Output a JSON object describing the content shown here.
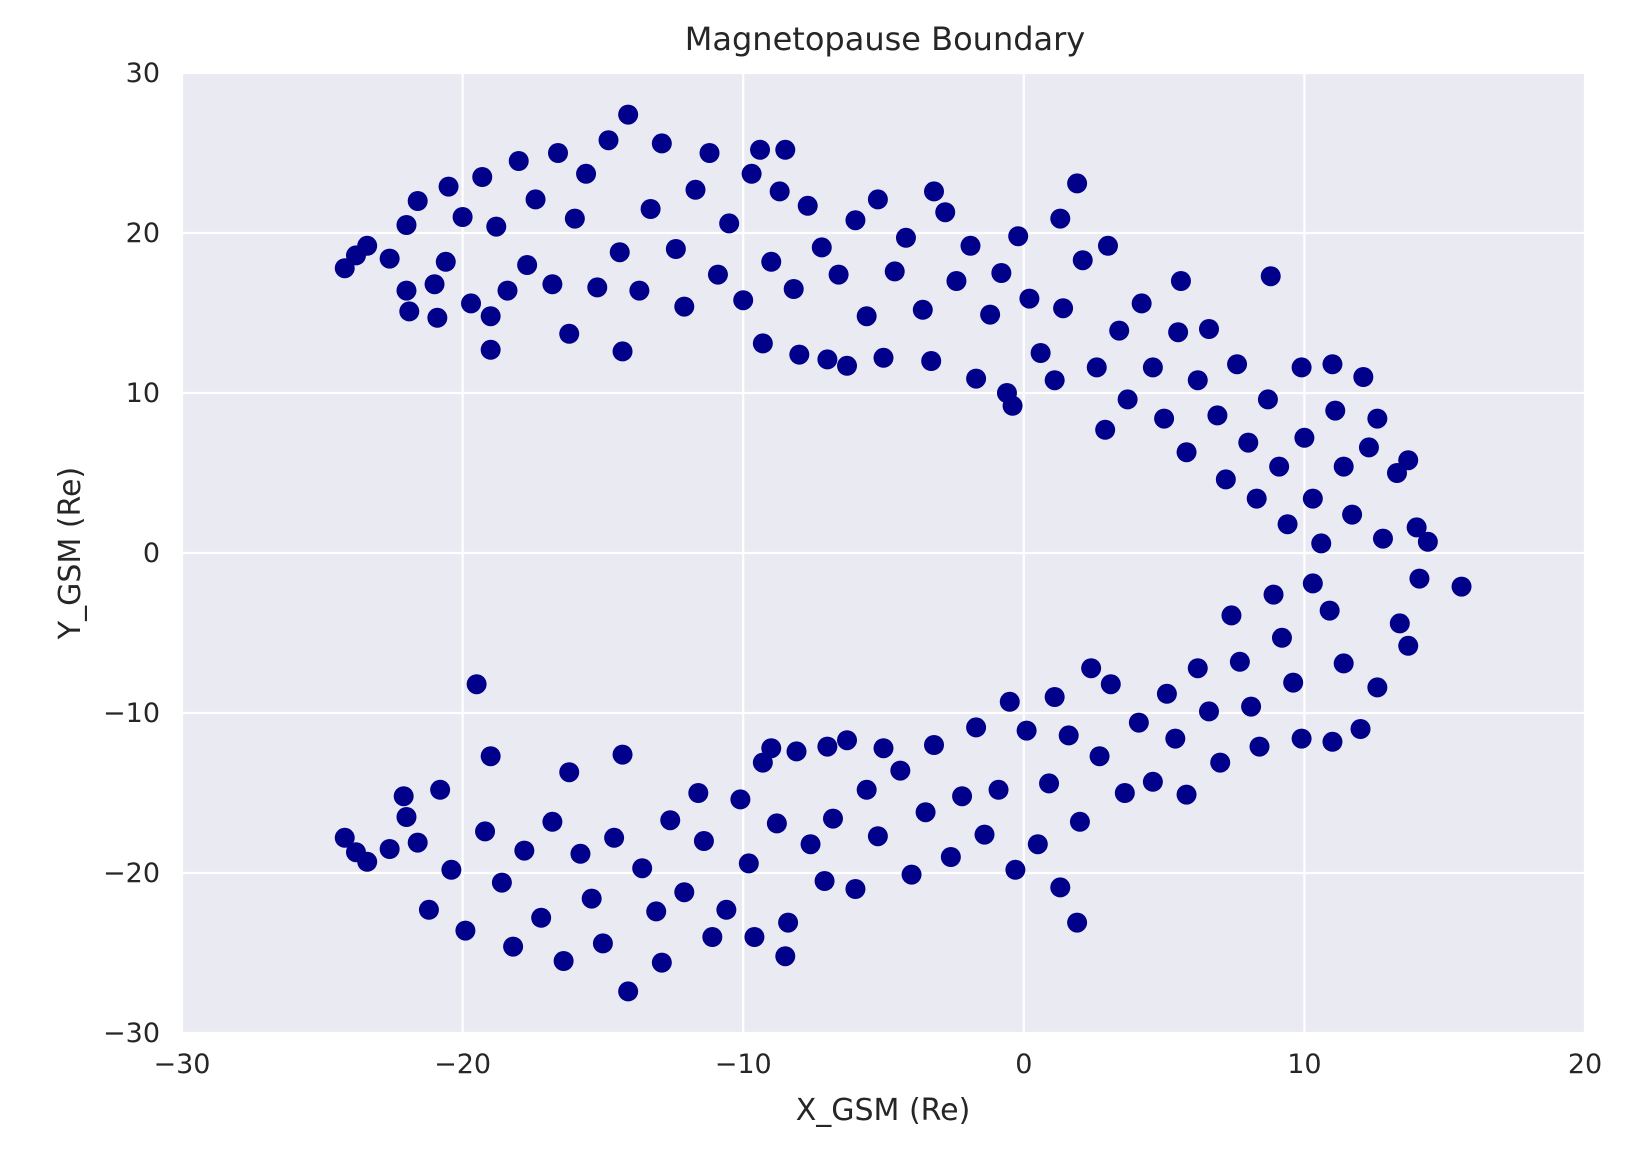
{
  "chart_data": {
    "type": "scatter",
    "title": "Magnetopause Boundary",
    "xlabel": "X_GSM (Re)",
    "ylabel": "Y_GSM (Re)",
    "xlim": [
      -30,
      20
    ],
    "ylim": [
      -30,
      30
    ],
    "xticks": [
      -30,
      -20,
      -10,
      0,
      10,
      20
    ],
    "yticks": [
      -30,
      -20,
      -10,
      0,
      10,
      20,
      30
    ],
    "xtick_labels": [
      "−30",
      "−20",
      "−10",
      "0",
      "10",
      "20"
    ],
    "ytick_labels": [
      "−30",
      "−20",
      "−10",
      "0",
      "10",
      "20",
      "30"
    ],
    "grid": true,
    "legend": "none",
    "marker_color": "#00008b",
    "background_color": "#eaeaf2",
    "series": [
      {
        "points": [
          [
            -24.2,
            17.8
          ],
          [
            -23.8,
            18.6
          ],
          [
            -23.4,
            19.2
          ],
          [
            -22.6,
            18.4
          ],
          [
            -22.0,
            20.5
          ],
          [
            -22.0,
            16.4
          ],
          [
            -21.9,
            15.1
          ],
          [
            -21.6,
            22.0
          ],
          [
            -21.0,
            16.8
          ],
          [
            -20.9,
            14.7
          ],
          [
            -20.6,
            18.2
          ],
          [
            -20.5,
            22.9
          ],
          [
            -20.0,
            21.0
          ],
          [
            -19.7,
            15.6
          ],
          [
            -19.3,
            23.5
          ],
          [
            -19.0,
            14.8
          ],
          [
            -19.0,
            12.7
          ],
          [
            -18.8,
            20.4
          ],
          [
            -18.4,
            16.4
          ],
          [
            -18.0,
            24.5
          ],
          [
            -17.7,
            18.0
          ],
          [
            -17.4,
            22.1
          ],
          [
            -16.8,
            16.8
          ],
          [
            -16.6,
            25.0
          ],
          [
            -16.2,
            13.7
          ],
          [
            -16.0,
            20.9
          ],
          [
            -15.6,
            23.7
          ],
          [
            -15.2,
            16.6
          ],
          [
            -14.8,
            25.8
          ],
          [
            -14.4,
            18.8
          ],
          [
            -14.3,
            12.6
          ],
          [
            -14.1,
            27.4
          ],
          [
            -13.7,
            16.4
          ],
          [
            -13.3,
            21.5
          ],
          [
            -12.9,
            25.6
          ],
          [
            -12.4,
            19.0
          ],
          [
            -12.1,
            15.4
          ],
          [
            -11.7,
            22.7
          ],
          [
            -11.2,
            25.0
          ],
          [
            -10.9,
            17.4
          ],
          [
            -10.5,
            20.6
          ],
          [
            -10.0,
            15.8
          ],
          [
            -9.7,
            23.7
          ],
          [
            -9.4,
            25.2
          ],
          [
            -9.3,
            13.1
          ],
          [
            -9.0,
            18.2
          ],
          [
            -8.7,
            22.6
          ],
          [
            -8.5,
            25.2
          ],
          [
            -8.2,
            16.5
          ],
          [
            -8.0,
            12.4
          ],
          [
            -7.7,
            21.7
          ],
          [
            -7.2,
            19.1
          ],
          [
            -7.0,
            12.1
          ],
          [
            -6.6,
            17.4
          ],
          [
            -6.3,
            11.7
          ],
          [
            -6.0,
            20.8
          ],
          [
            -5.6,
            14.8
          ],
          [
            -5.2,
            22.1
          ],
          [
            -5.0,
            12.2
          ],
          [
            -4.6,
            17.6
          ],
          [
            -4.2,
            19.7
          ],
          [
            -3.6,
            15.2
          ],
          [
            -3.3,
            12.0
          ],
          [
            -3.2,
            22.6
          ],
          [
            -2.8,
            21.3
          ],
          [
            -2.4,
            17.0
          ],
          [
            -1.9,
            19.2
          ],
          [
            -1.7,
            10.9
          ],
          [
            -1.2,
            14.9
          ],
          [
            -0.8,
            17.5
          ],
          [
            -0.6,
            10.0
          ],
          [
            -0.4,
            9.2
          ],
          [
            -0.2,
            19.8
          ],
          [
            0.2,
            15.9
          ],
          [
            0.6,
            12.5
          ],
          [
            1.1,
            10.8
          ],
          [
            1.3,
            20.9
          ],
          [
            1.4,
            15.3
          ],
          [
            1.9,
            23.1
          ],
          [
            2.1,
            18.3
          ],
          [
            2.6,
            11.6
          ],
          [
            2.9,
            7.7
          ],
          [
            3.0,
            19.2
          ],
          [
            3.4,
            13.9
          ],
          [
            3.7,
            9.6
          ],
          [
            4.2,
            15.6
          ],
          [
            4.6,
            11.6
          ],
          [
            5.0,
            8.4
          ],
          [
            5.5,
            13.8
          ],
          [
            5.6,
            17.0
          ],
          [
            5.8,
            6.3
          ],
          [
            6.2,
            10.8
          ],
          [
            6.6,
            14.0
          ],
          [
            6.9,
            8.6
          ],
          [
            7.2,
            4.6
          ],
          [
            7.6,
            11.8
          ],
          [
            8.0,
            6.9
          ],
          [
            8.3,
            3.4
          ],
          [
            8.7,
            9.6
          ],
          [
            8.8,
            17.3
          ],
          [
            9.1,
            5.4
          ],
          [
            9.4,
            1.8
          ],
          [
            9.9,
            11.6
          ],
          [
            10.0,
            7.2
          ],
          [
            10.3,
            3.4
          ],
          [
            10.6,
            0.6
          ],
          [
            11.0,
            11.8
          ],
          [
            11.1,
            8.9
          ],
          [
            11.4,
            5.4
          ],
          [
            11.7,
            2.4
          ],
          [
            12.1,
            11.0
          ],
          [
            12.3,
            6.6
          ],
          [
            12.6,
            8.4
          ],
          [
            12.8,
            0.9
          ],
          [
            13.3,
            5.0
          ],
          [
            13.7,
            5.8
          ],
          [
            14.0,
            1.6
          ],
          [
            14.4,
            0.7
          ],
          [
            15.6,
            -2.1
          ],
          [
            14.1,
            -1.6
          ],
          [
            13.4,
            -4.4
          ],
          [
            13.7,
            -5.8
          ],
          [
            12.6,
            -8.4
          ],
          [
            12.0,
            -11.0
          ],
          [
            11.0,
            -11.8
          ],
          [
            11.4,
            -6.9
          ],
          [
            10.9,
            -3.6
          ],
          [
            10.3,
            -1.9
          ],
          [
            9.9,
            -11.6
          ],
          [
            9.6,
            -8.1
          ],
          [
            9.2,
            -5.3
          ],
          [
            8.9,
            -2.6
          ],
          [
            8.4,
            -12.1
          ],
          [
            8.1,
            -9.6
          ],
          [
            7.7,
            -6.8
          ],
          [
            7.4,
            -3.9
          ],
          [
            7.0,
            -13.1
          ],
          [
            6.6,
            -9.9
          ],
          [
            6.2,
            -7.2
          ],
          [
            5.8,
            -15.1
          ],
          [
            5.4,
            -11.6
          ],
          [
            5.1,
            -8.8
          ],
          [
            4.6,
            -14.3
          ],
          [
            4.1,
            -10.6
          ],
          [
            3.6,
            -15.0
          ],
          [
            3.1,
            -8.2
          ],
          [
            2.7,
            -12.7
          ],
          [
            2.4,
            -7.2
          ],
          [
            2.0,
            -16.8
          ],
          [
            1.9,
            -23.1
          ],
          [
            1.6,
            -11.4
          ],
          [
            1.3,
            -20.9
          ],
          [
            1.1,
            -9.0
          ],
          [
            0.9,
            -14.4
          ],
          [
            0.5,
            -18.2
          ],
          [
            0.1,
            -11.1
          ],
          [
            -0.3,
            -19.8
          ],
          [
            -0.5,
            -9.3
          ],
          [
            -0.9,
            -14.8
          ],
          [
            -1.4,
            -17.6
          ],
          [
            -1.7,
            -10.9
          ],
          [
            -2.2,
            -15.2
          ],
          [
            -2.6,
            -19.0
          ],
          [
            -3.2,
            -12.0
          ],
          [
            -3.5,
            -16.2
          ],
          [
            -4.0,
            -20.1
          ],
          [
            -4.4,
            -13.6
          ],
          [
            -5.0,
            -12.2
          ],
          [
            -5.2,
            -17.7
          ],
          [
            -5.6,
            -14.8
          ],
          [
            -6.0,
            -21.0
          ],
          [
            -6.3,
            -11.7
          ],
          [
            -6.8,
            -16.6
          ],
          [
            -7.1,
            -20.5
          ],
          [
            -7.0,
            -12.1
          ],
          [
            -7.6,
            -18.2
          ],
          [
            -8.1,
            -12.4
          ],
          [
            -8.4,
            -23.1
          ],
          [
            -8.5,
            -25.2
          ],
          [
            -8.8,
            -16.9
          ],
          [
            -9.0,
            -12.2
          ],
          [
            -9.3,
            -13.1
          ],
          [
            -9.6,
            -24.0
          ],
          [
            -9.8,
            -19.4
          ],
          [
            -10.1,
            -15.4
          ],
          [
            -10.6,
            -22.3
          ],
          [
            -11.1,
            -24.0
          ],
          [
            -11.4,
            -18.0
          ],
          [
            -11.6,
            -15.0
          ],
          [
            -12.1,
            -21.2
          ],
          [
            -12.6,
            -16.7
          ],
          [
            -12.9,
            -25.6
          ],
          [
            -13.1,
            -22.4
          ],
          [
            -13.6,
            -19.7
          ],
          [
            -14.1,
            -27.4
          ],
          [
            -14.3,
            -12.6
          ],
          [
            -14.6,
            -17.8
          ],
          [
            -15.0,
            -24.4
          ],
          [
            -15.4,
            -21.6
          ],
          [
            -15.8,
            -18.8
          ],
          [
            -16.2,
            -13.7
          ],
          [
            -16.4,
            -25.5
          ],
          [
            -16.8,
            -16.8
          ],
          [
            -17.2,
            -22.8
          ],
          [
            -17.8,
            -18.6
          ],
          [
            -18.2,
            -24.6
          ],
          [
            -18.6,
            -20.6
          ],
          [
            -19.0,
            -12.7
          ],
          [
            -19.2,
            -17.4
          ],
          [
            -19.5,
            -8.2
          ],
          [
            -19.9,
            -23.6
          ],
          [
            -20.4,
            -19.8
          ],
          [
            -20.8,
            -14.8
          ],
          [
            -21.2,
            -22.3
          ],
          [
            -21.6,
            -18.1
          ],
          [
            -22.0,
            -16.5
          ],
          [
            -22.1,
            -15.2
          ],
          [
            -22.6,
            -18.5
          ],
          [
            -23.4,
            -19.3
          ],
          [
            -23.8,
            -18.7
          ],
          [
            -24.2,
            -17.8
          ]
        ]
      }
    ]
  }
}
